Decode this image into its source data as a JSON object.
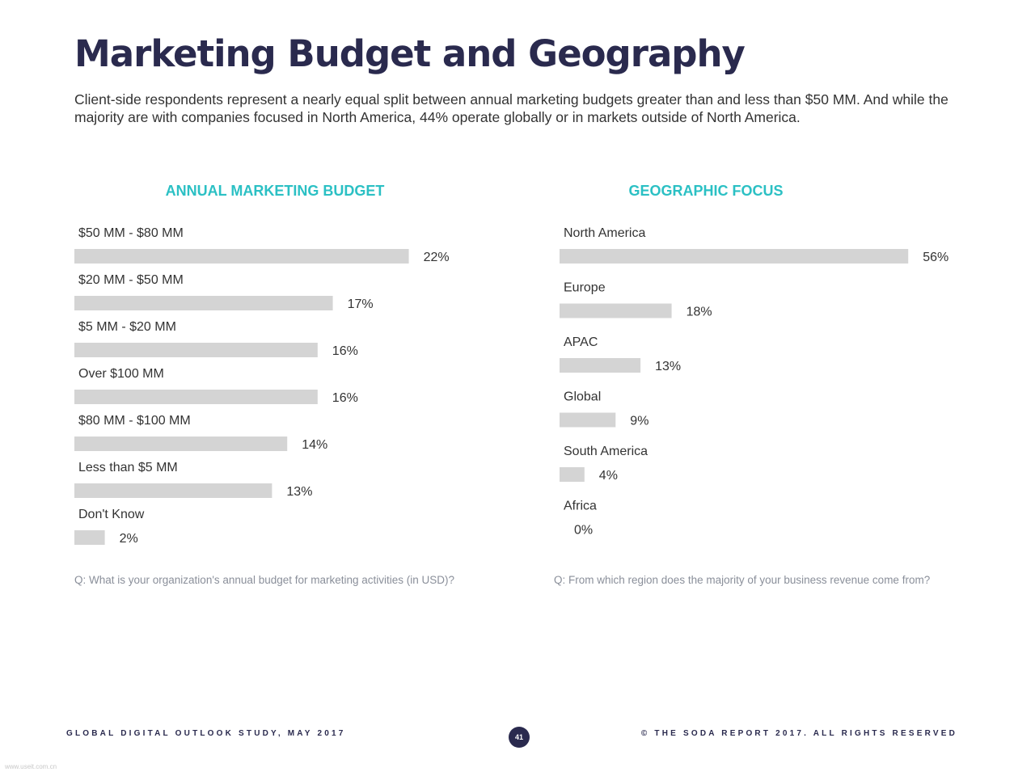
{
  "title": "Marketing Budget and Geography",
  "subtitle": "Client-side respondents represent a nearly equal split between annual marketing budgets greater than and less than $50 MM. And while the majority are with companies focused in North America, 44% operate globally or in markets outside of North America.",
  "chart_data": [
    {
      "type": "bar",
      "orientation": "horizontal",
      "title": "ANNUAL MARKETING BUDGET",
      "categories": [
        "$50 MM - $80 MM",
        "$20 MM - $50 MM",
        "$5 MM - $20 MM",
        "Over $100 MM",
        "$80 MM - $100 MM",
        "Less than $5 MM",
        "Don't Know"
      ],
      "values": [
        22,
        17,
        16,
        16,
        14,
        13,
        2
      ],
      "value_labels": [
        "22%",
        "17%",
        "16%",
        "16%",
        "14%",
        "13%",
        "2%"
      ],
      "unit": "%",
      "bar_color": "#d4d4d4",
      "grid": false,
      "question": "Q: What is your organization's annual budget for marketing activities (in USD)?"
    },
    {
      "type": "bar",
      "orientation": "horizontal",
      "title": "GEOGRAPHIC FOCUS",
      "categories": [
        "North America",
        "Europe",
        "APAC",
        "Global",
        "South America",
        "Africa"
      ],
      "values": [
        56,
        18,
        13,
        9,
        4,
        0
      ],
      "value_labels": [
        "56%",
        "18%",
        "13%",
        "9%",
        "4%",
        "0%"
      ],
      "unit": "%",
      "bar_color": "#d4d4d4",
      "grid": false,
      "question": "Q: From which region does the majority of your business revenue come from?"
    }
  ],
  "footer": {
    "left": "GLOBAL DIGITAL OUTLOOK STUDY, MAY 2017",
    "page_number": "41",
    "right": "© THE SODA REPORT 2017. ALL RIGHTS RESERVED"
  },
  "watermark": "www.useit.com.cn",
  "colors": {
    "title": "#2a2a4e",
    "chart_title": "#2bc0c4",
    "bar": "#d4d4d4",
    "question_text": "#8a8f9a"
  }
}
